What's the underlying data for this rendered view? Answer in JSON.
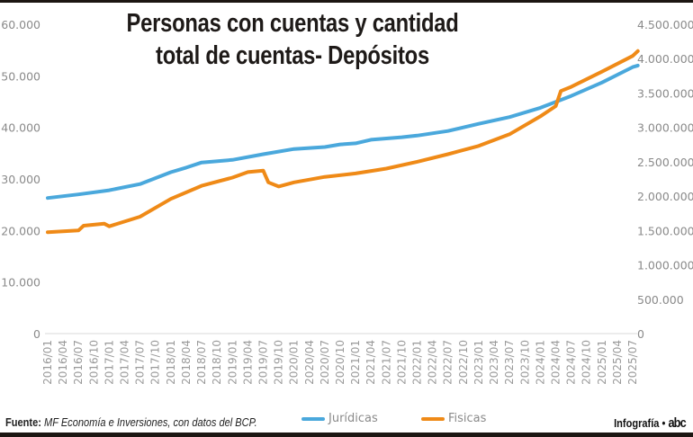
{
  "chart_data": {
    "type": "line",
    "title": "Personas con cuentas y cantidad total de cuentas- Depósitos",
    "title_lines": [
      "Personas con cuentas y cantidad",
      "total de cuentas- Depósitos"
    ],
    "x_ticks": [
      "2016/01",
      "2016/04",
      "2016/07",
      "2016/10",
      "2017/01",
      "2017/04",
      "2017/07",
      "2017/10",
      "2018/01",
      "2018/04",
      "2018/07",
      "2018/10",
      "2019/01",
      "2019/04",
      "2019/07",
      "2019/10",
      "2020/01",
      "2020/04",
      "2020/07",
      "2020/10",
      "2021/01",
      "2021/04",
      "2021/07",
      "2021/10",
      "2022/01",
      "2022/04",
      "2022/07",
      "2022/10",
      "2023/01",
      "2023/04",
      "2023/07",
      "2023/10",
      "2024/01",
      "2024/04",
      "2024/07",
      "2024/10",
      "2025/01",
      "2025/04",
      "2025/07"
    ],
    "y_left": {
      "range": [
        0,
        60000
      ],
      "ticks": [
        "0",
        "10.000",
        "20.000",
        "30.000",
        "40.000",
        "50.000",
        "60.000"
      ]
    },
    "y_right": {
      "range": [
        0,
        4500000
      ],
      "ticks": [
        "0",
        "500.000",
        "1.000.000",
        "1.500.000",
        "2.000.000",
        "2.500.000",
        "3.000.000",
        "3.500.000",
        "4.000.000",
        "4.500.000"
      ]
    },
    "grid": false,
    "legend_position": "bottom",
    "series": [
      {
        "name": "Jurídicas",
        "axis": "left",
        "color": "#4aa8dc",
        "x": [
          "2016/01",
          "2016/07",
          "2017/01",
          "2017/07",
          "2018/01",
          "2018/04",
          "2018/07",
          "2019/01",
          "2019/07",
          "2020/01",
          "2020/07",
          "2020/10",
          "2021/01",
          "2021/04",
          "2021/10",
          "2022/01",
          "2022/07",
          "2023/01",
          "2023/07",
          "2024/01",
          "2024/07",
          "2025/01",
          "2025/07",
          "2025/08"
        ],
        "values": [
          26300,
          27000,
          27800,
          29000,
          31300,
          32200,
          33200,
          33700,
          34800,
          35800,
          36200,
          36700,
          36900,
          37600,
          38100,
          38400,
          39300,
          40700,
          42000,
          43800,
          46100,
          48700,
          51700,
          52000
        ]
      },
      {
        "name": "Fisicas",
        "axis": "right",
        "color": "#ef8a17",
        "x": [
          "2016/01",
          "2016/07",
          "2016/08",
          "2016/12",
          "2017/01",
          "2017/07",
          "2018/01",
          "2018/07",
          "2019/01",
          "2019/04",
          "2019/07",
          "2019/08",
          "2019/10",
          "2020/01",
          "2020/07",
          "2021/01",
          "2021/07",
          "2022/01",
          "2022/07",
          "2023/01",
          "2023/07",
          "2024/01",
          "2024/04",
          "2024/05",
          "2024/07",
          "2025/01",
          "2025/07",
          "2025/08"
        ],
        "values": [
          1474000,
          1500000,
          1570000,
          1600000,
          1560000,
          1700000,
          1960000,
          2150000,
          2270000,
          2350000,
          2370000,
          2200000,
          2140000,
          2200000,
          2280000,
          2330000,
          2400000,
          2500000,
          2610000,
          2730000,
          2900000,
          3160000,
          3310000,
          3530000,
          3590000,
          3810000,
          4040000,
          4110000
        ]
      }
    ]
  },
  "footer": {
    "source_label": "Fuente:",
    "source_text": "MF Economía e Inversiones, con datos del BCP.",
    "brand": "Infografía •",
    "logo": "abc"
  }
}
